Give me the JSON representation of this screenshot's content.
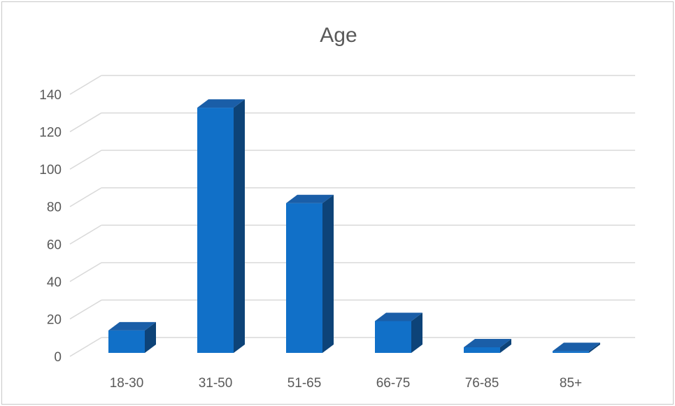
{
  "chart_data": {
    "type": "bar",
    "title": "Age",
    "xlabel": "",
    "ylabel": "",
    "categories": [
      "18-30",
      "31-50",
      "51-65",
      "66-75",
      "76-85",
      "85+"
    ],
    "values": [
      12,
      131,
      80,
      17,
      3,
      1
    ],
    "ylim": [
      0,
      140
    ],
    "yticks": [
      0,
      20,
      40,
      60,
      80,
      100,
      120,
      140
    ],
    "grid": true,
    "legend": "none",
    "colors": {
      "bar_front": "#1170c8",
      "bar_top": "#1a5ea8",
      "bar_side": "#0d4378",
      "grid": "#d9d9d9",
      "text": "#595959"
    }
  }
}
